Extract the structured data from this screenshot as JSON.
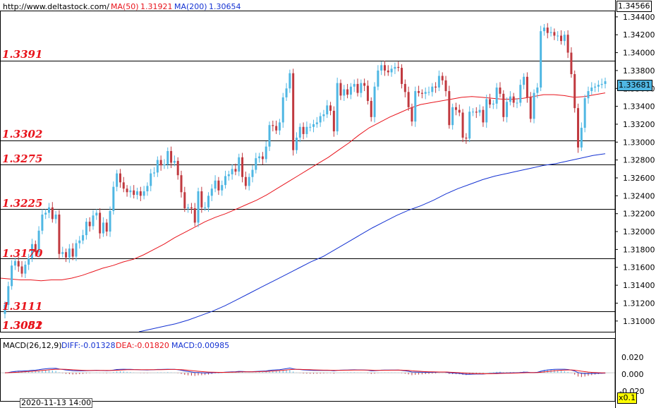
{
  "header": {
    "url": "http://www.deltastock.com/",
    "ma50_label": "MA(50)",
    "ma50_value": "1.31921",
    "ma200_label": "MA(200)",
    "ma200_value": "1.30654"
  },
  "macd_header": {
    "label": "MACD(26,12,9)",
    "diff": "DIFF:-0.01328",
    "dea": "DEA:-0.01820",
    "macd": "MACD:0.00985"
  },
  "price_axis": {
    "high_box": "1.34566",
    "current_box": "1.33681",
    "ticks": [
      "1.34400",
      "1.34200",
      "1.34000",
      "1.33800",
      "1.33600",
      "1.33400",
      "1.33200",
      "1.33000",
      "1.32800",
      "1.32600",
      "1.32400",
      "1.32200",
      "1.32000",
      "1.31800",
      "1.31600",
      "1.31400",
      "1.31200",
      "1.31000"
    ]
  },
  "macd_axis": {
    "ticks": [
      "0.020",
      "0.000",
      "-0.020"
    ],
    "zoom": "x0.1"
  },
  "time_label": "2020-11-13 14:00",
  "levels": [
    {
      "label": "1.3391",
      "value": 1.3391
    },
    {
      "label": "1.3302",
      "value": 1.3302
    },
    {
      "label": "1.3275",
      "value": 1.3275
    },
    {
      "label": "1.3225",
      "value": 1.3225
    },
    {
      "label": "1.3170",
      "value": 1.317
    },
    {
      "label": "1.3111",
      "value": 1.3111
    },
    {
      "label": "1.3052",
      "value": 1.3052
    },
    {
      "label": "1.3081",
      "value": 1.3081
    }
  ],
  "colors": {
    "bull": "#4fb7e3",
    "bear": "#c0393f",
    "ma50": "#e8141c",
    "ma200": "#1432d2",
    "level_text": "#e8141c",
    "diff_line": "#1432d2",
    "dea_line": "#e8141c"
  },
  "chart_data": {
    "type": "candlestick",
    "y_range": [
      1.3088,
      1.3456
    ],
    "macd_range": [
      -0.026,
      0.032
    ],
    "close": [
      1.3118,
      1.3139,
      1.3162,
      1.3167,
      1.3161,
      1.3153,
      1.3163,
      1.317,
      1.3186,
      1.3177,
      1.3201,
      1.3219,
      1.3221,
      1.3227,
      1.3214,
      1.3219,
      1.3175,
      1.3177,
      1.3171,
      1.3181,
      1.3172,
      1.3187,
      1.319,
      1.3196,
      1.3211,
      1.3206,
      1.3218,
      1.3221,
      1.3198,
      1.321,
      1.32,
      1.3223,
      1.325,
      1.3265,
      1.3255,
      1.3248,
      1.3244,
      1.3246,
      1.3241,
      1.3245,
      1.324,
      1.3245,
      1.3251,
      1.3265,
      1.3266,
      1.328,
      1.3274,
      1.3275,
      1.329,
      1.3277,
      1.3279,
      1.3263,
      1.3244,
      1.3226,
      1.3227,
      1.3226,
      1.321,
      1.3245,
      1.3227,
      1.3227,
      1.324,
      1.3248,
      1.3257,
      1.3246,
      1.3252,
      1.3262,
      1.3264,
      1.327,
      1.3267,
      1.3283,
      1.3261,
      1.3251,
      1.3261,
      1.3269,
      1.3282,
      1.3284,
      1.3281,
      1.3295,
      1.3319,
      1.3318,
      1.3313,
      1.3322,
      1.335,
      1.336,
      1.3377,
      1.3291,
      1.3305,
      1.3317,
      1.3309,
      1.3317,
      1.3317,
      1.332,
      1.3322,
      1.3329,
      1.3331,
      1.3341,
      1.3335,
      1.3312,
      1.3366,
      1.3352,
      1.3359,
      1.3353,
      1.3362,
      1.3365,
      1.3355,
      1.3366,
      1.3363,
      1.3346,
      1.3328,
      1.3362,
      1.338,
      1.3386,
      1.338,
      1.3378,
      1.3382,
      1.3384,
      1.3383,
      1.3365,
      1.3356,
      1.3339,
      1.3323,
      1.3357,
      1.3355,
      1.3354,
      1.3356,
      1.3356,
      1.3362,
      1.3361,
      1.3374,
      1.3369,
      1.3357,
      1.3319,
      1.3339,
      1.3336,
      1.3333,
      1.3305,
      1.3304,
      1.3334,
      1.3334,
      1.3333,
      1.3336,
      1.3322,
      1.3348,
      1.3342,
      1.3343,
      1.3361,
      1.3354,
      1.3328,
      1.3345,
      1.3351,
      1.3344,
      1.3344,
      1.3364,
      1.3373,
      1.335,
      1.3326,
      1.3355,
      1.3361,
      1.3424,
      1.3428,
      1.3422,
      1.3423,
      1.3419,
      1.3419,
      1.3413,
      1.342,
      1.34,
      1.3376,
      1.3338,
      1.3294,
      1.3316,
      1.3349,
      1.3357,
      1.3361,
      1.3362,
      1.3364,
      1.3365,
      1.3368
    ],
    "ma50": [
      1.3148,
      1.3147,
      1.3146,
      1.3146,
      1.3145,
      1.3146,
      1.3146,
      1.3148,
      1.3151,
      1.3155,
      1.3159,
      1.3162,
      1.3166,
      1.3169,
      1.3174,
      1.318,
      1.3186,
      1.3193,
      1.3199,
      1.3205,
      1.3211,
      1.3216,
      1.322,
      1.3225,
      1.323,
      1.3235,
      1.3241,
      1.3248,
      1.3255,
      1.3262,
      1.3269,
      1.3276,
      1.3283,
      1.3291,
      1.3299,
      1.3308,
      1.3316,
      1.3322,
      1.3328,
      1.3333,
      1.3338,
      1.3342,
      1.3344,
      1.3346,
      1.3348,
      1.335,
      1.3351,
      1.335,
      1.3349,
      1.3348,
      1.3348,
      1.3349,
      1.3351,
      1.3353,
      1.3353,
      1.3352,
      1.335,
      1.3351,
      1.3353,
      1.3355
    ],
    "ma200": [
      1.3088,
      1.3091,
      1.3094,
      1.3097,
      1.3101,
      1.3106,
      1.3111,
      1.3117,
      1.3124,
      1.3131,
      1.3138,
      1.3145,
      1.3152,
      1.3159,
      1.3166,
      1.3172,
      1.318,
      1.3188,
      1.3196,
      1.3204,
      1.3211,
      1.3218,
      1.3224,
      1.3229,
      1.3235,
      1.3242,
      1.3248,
      1.3253,
      1.3258,
      1.3262,
      1.3265,
      1.3268,
      1.3271,
      1.3274,
      1.3276,
      1.3279,
      1.3282,
      1.3285,
      1.3287
    ]
  }
}
